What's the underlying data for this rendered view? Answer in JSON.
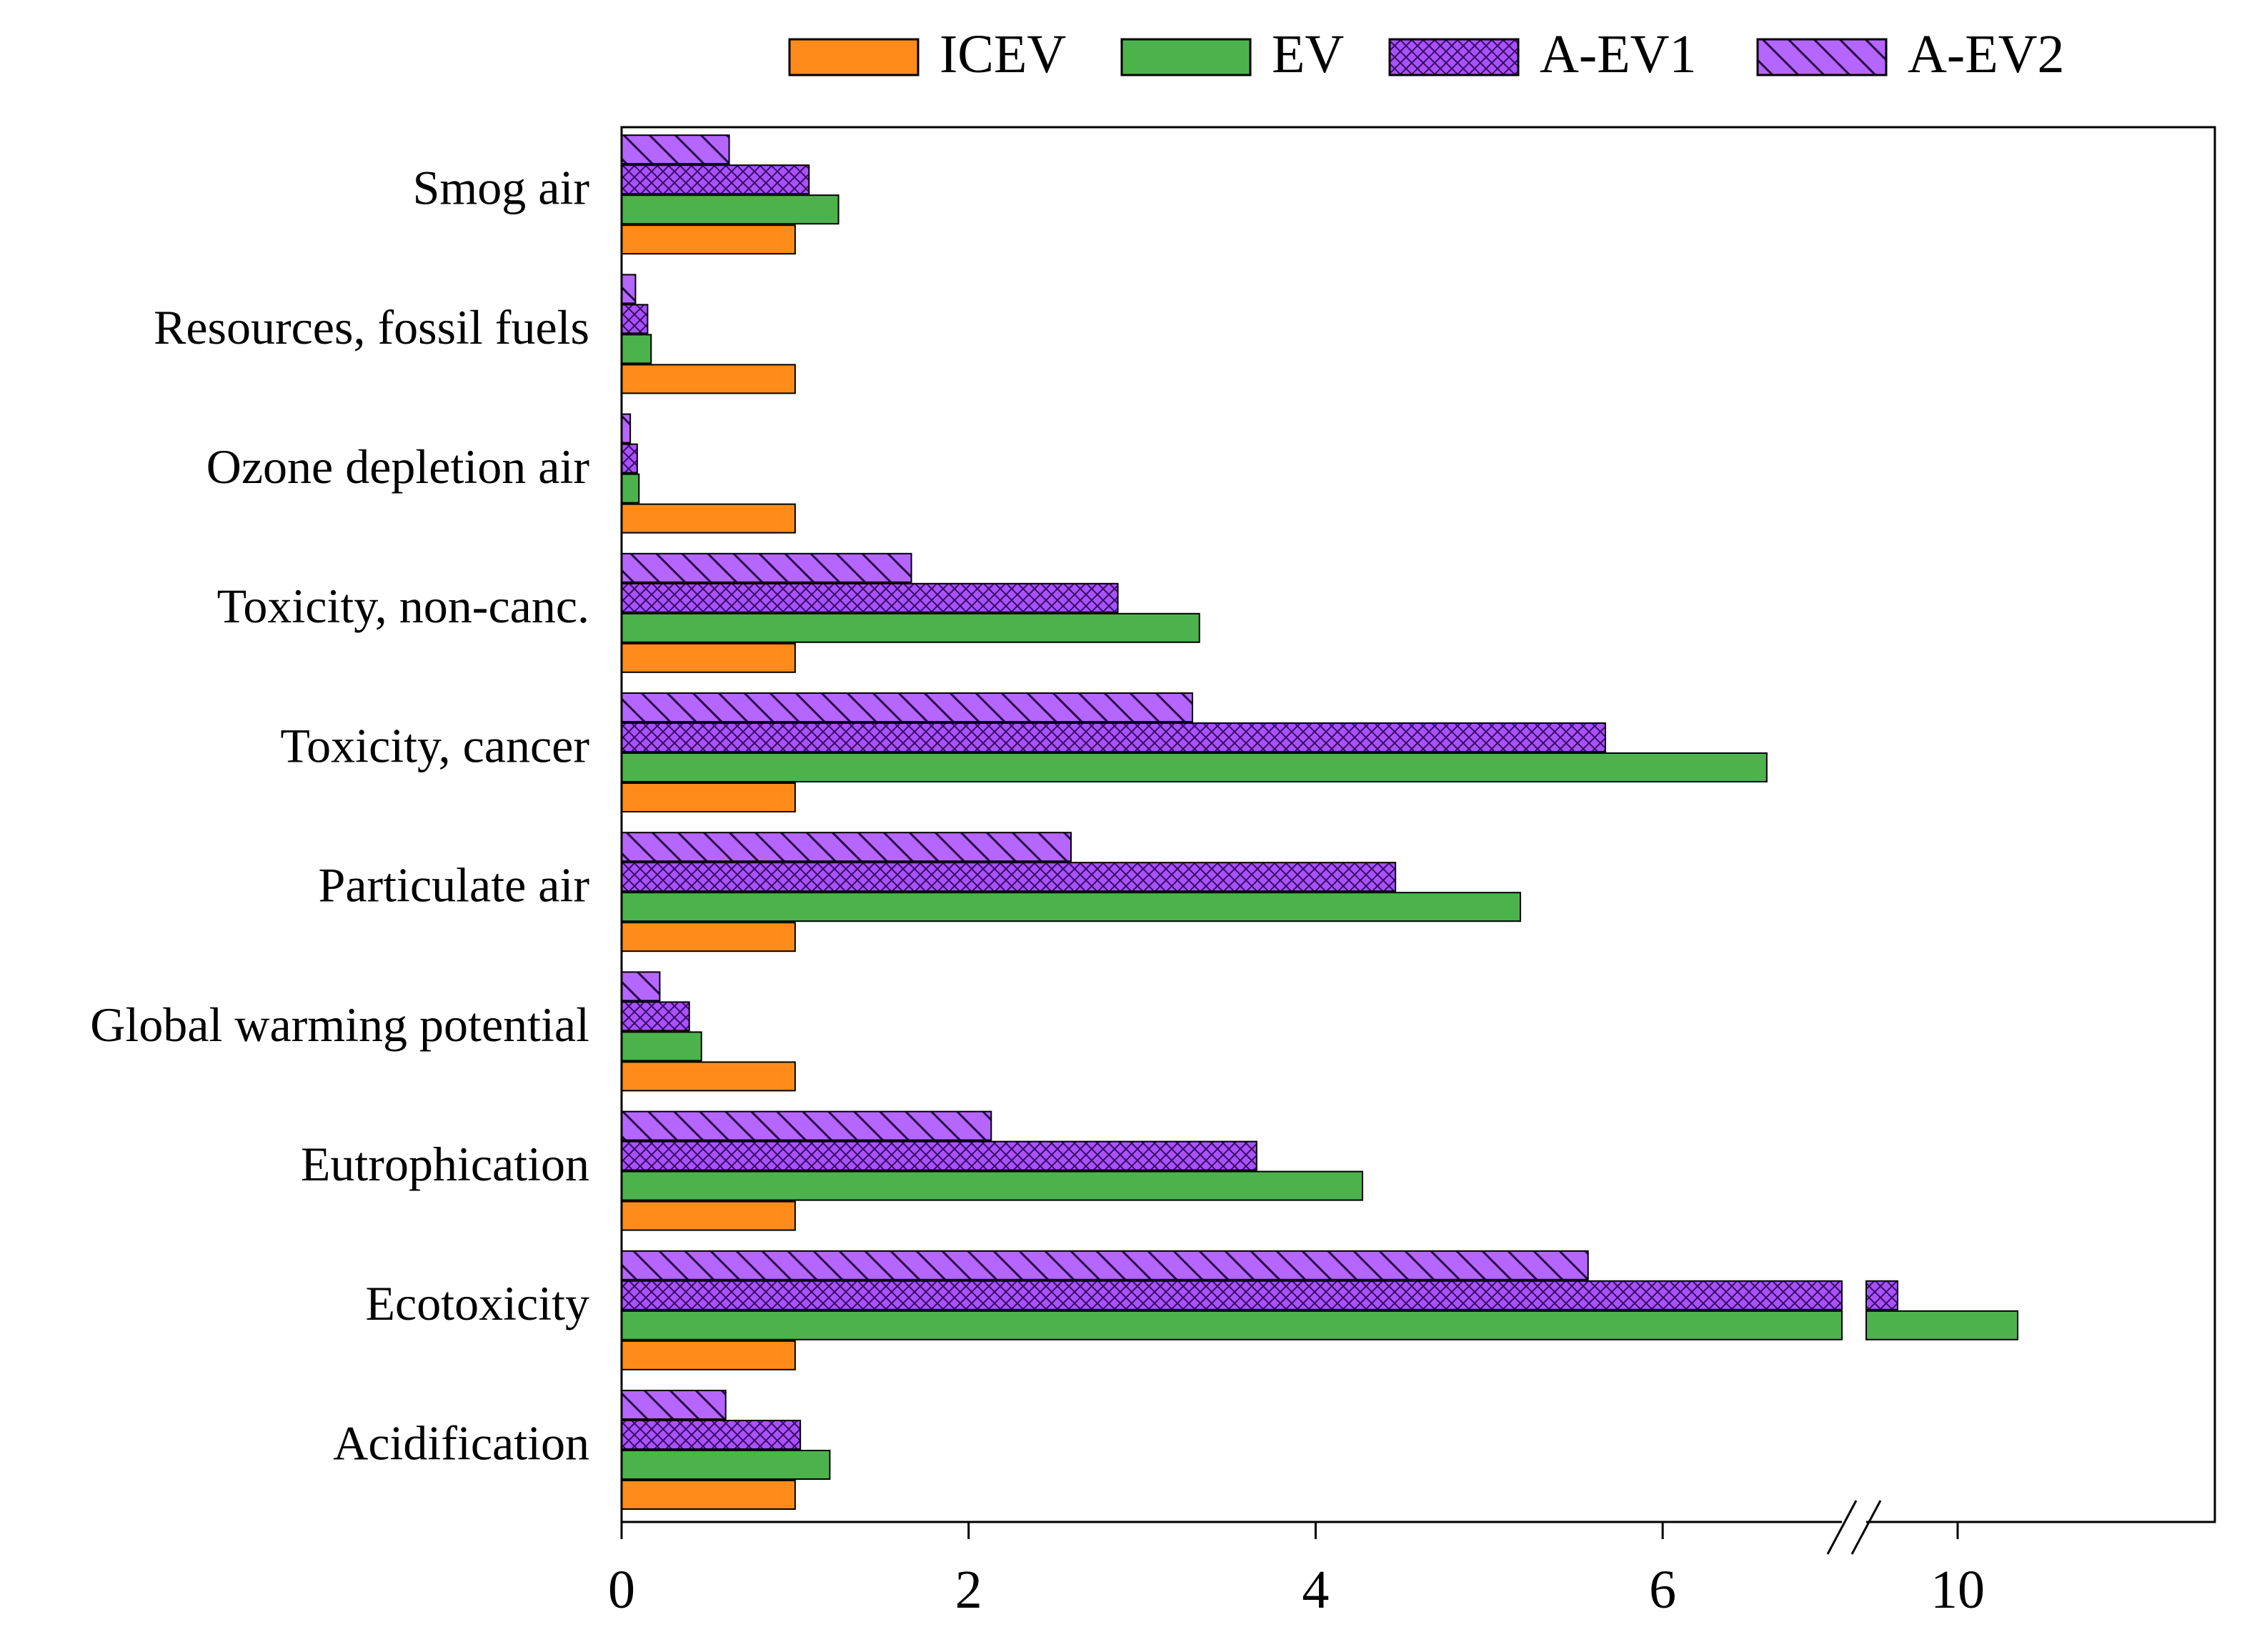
{
  "chart_data": {
    "type": "bar",
    "orientation": "horizontal",
    "categories": [
      "Acidification",
      "Ecotoxicity",
      "Eutrophication",
      "Global warming potential",
      "Particulate air",
      "Toxicity, cancer",
      "Toxicity, non-canc.",
      "Ozone depletion air",
      "Resources, fossil fuels",
      "Smog air"
    ],
    "series": [
      {
        "name": "ICEV",
        "color": "#ff8c1a",
        "pattern": "solid",
        "values": [
          1,
          1,
          1,
          1,
          1,
          1,
          1,
          1,
          1,
          1
        ]
      },
      {
        "name": "EV",
        "color": "#4cb34c",
        "pattern": "solid",
        "values": [
          1.2,
          10.7,
          4.27,
          0.46,
          5.18,
          6.6,
          3.33,
          0.1,
          0.17,
          1.25
        ]
      },
      {
        "name": "A-EV1",
        "color": "#a852ff",
        "pattern": "crosshatch",
        "values": [
          1.03,
          9.3,
          3.66,
          0.39,
          4.46,
          5.67,
          2.86,
          0.09,
          0.15,
          1.08
        ]
      },
      {
        "name": "A-EV2",
        "color": "#b566ff",
        "pattern": "diagonal",
        "values": [
          0.6,
          5.57,
          2.13,
          0.22,
          2.59,
          3.29,
          1.67,
          0.05,
          0.08,
          0.62
        ]
      }
    ],
    "xaxis": {
      "tick_labels": [
        "0",
        "2",
        "4",
        "6",
        "10"
      ],
      "ticks": [
        0,
        2,
        4,
        6,
        10
      ],
      "segment1_range": [
        0,
        7
      ],
      "break_marker": "//",
      "segment2_range": [
        9,
        11.5
      ]
    },
    "title": "",
    "xlabel": "",
    "ylabel": "",
    "legend_position": "top"
  }
}
